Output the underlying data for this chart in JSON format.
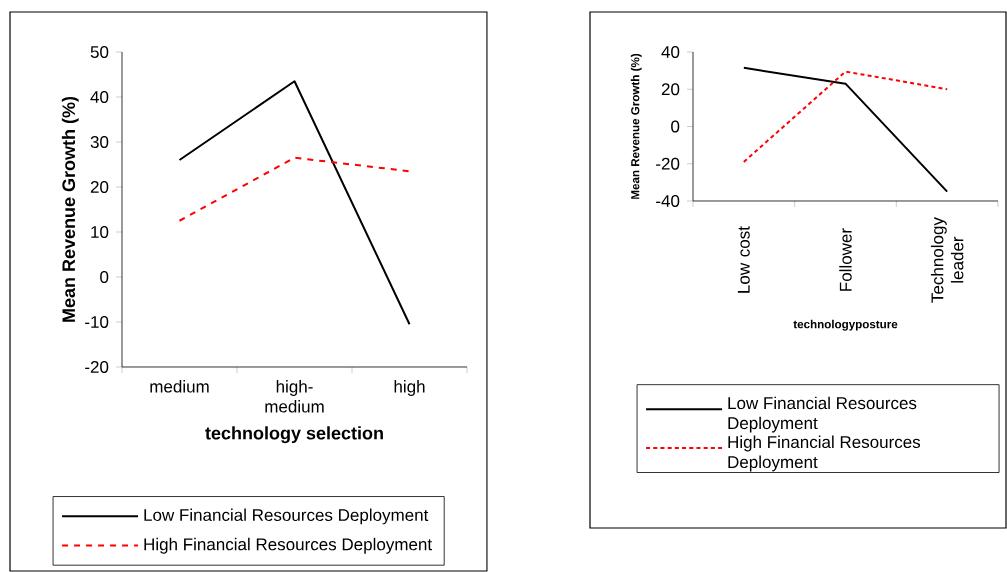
{
  "chart_data": [
    {
      "type": "line",
      "xlabel": "technology selection",
      "ylabel": "Mean Revenue Growth (%)",
      "categories": [
        "medium",
        "high-medium",
        "high"
      ],
      "series": [
        {
          "name": "Low Financial Resources Deployment",
          "color": "#000000",
          "line_style": "solid",
          "values": [
            26,
            43.5,
            -10.5
          ]
        },
        {
          "name": "High Financial Resources Deployment",
          "color": "#ff0000",
          "line_style": "dashed",
          "values": [
            12.5,
            26.5,
            23.5
          ]
        }
      ],
      "ylim": [
        -20,
        50
      ],
      "yticks": [
        -20,
        -10,
        0,
        10,
        20,
        30,
        40,
        50
      ],
      "legend": "bottom"
    },
    {
      "type": "line",
      "xlabel": "technologyposture",
      "ylabel": "Mean Revenue Growth (%)",
      "categories": [
        "Low cost",
        "Follower",
        "Technology leader"
      ],
      "series": [
        {
          "name": "Low  Financial Resources Deployment",
          "color": "#000000",
          "line_style": "solid",
          "values": [
            31.5,
            23,
            -35
          ]
        },
        {
          "name": "High Financial Resources Deployment",
          "color": "#ff0000",
          "line_style": "dotted",
          "values": [
            -19,
            29.5,
            20
          ]
        }
      ],
      "ylim": [
        -40,
        40
      ],
      "yticks": [
        -40,
        -20,
        0,
        20,
        40
      ],
      "legend": "bottom"
    }
  ]
}
